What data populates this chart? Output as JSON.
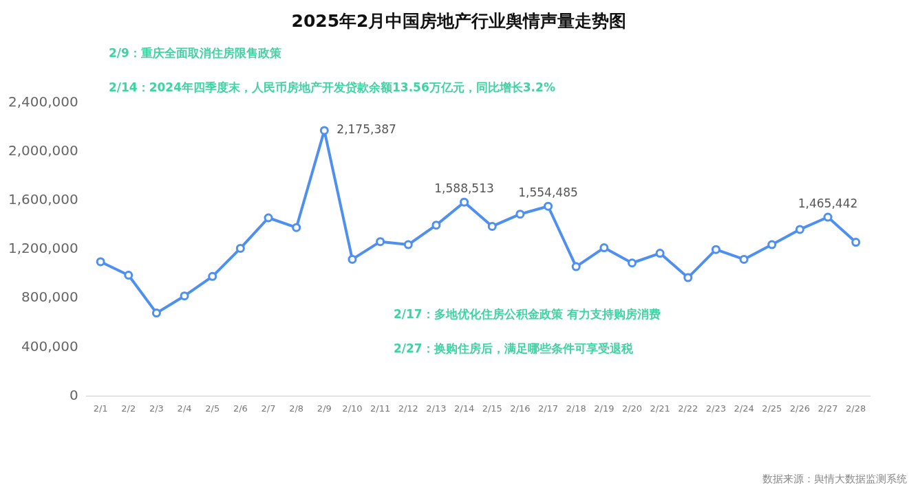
{
  "chart_data": {
    "type": "line",
    "title": "2025年2月中国房地产行业舆情声量走势图",
    "categories": [
      "2/1",
      "2/2",
      "2/3",
      "2/4",
      "2/5",
      "2/6",
      "2/7",
      "2/8",
      "2/9",
      "2/10",
      "2/11",
      "2/12",
      "2/13",
      "2/14",
      "2/15",
      "2/16",
      "2/17",
      "2/18",
      "2/19",
      "2/20",
      "2/21",
      "2/22",
      "2/23",
      "2/24",
      "2/25",
      "2/26",
      "2/27",
      "2/28"
    ],
    "series": [
      {
        "color": "#4e8ff0",
        "values": [
          1100000,
          990000,
          680000,
          820000,
          980000,
          1210000,
          1460000,
          1380000,
          2175387,
          1120000,
          1265000,
          1240000,
          1400000,
          1588513,
          1390000,
          1490000,
          1554485,
          1060000,
          1215000,
          1090000,
          1170000,
          970000,
          1200000,
          1120000,
          1240000,
          1365000,
          1465442,
          1260000
        ],
        "value_labels": [
          null,
          null,
          null,
          null,
          null,
          null,
          null,
          null,
          "2,175,387",
          null,
          null,
          null,
          null,
          "1,588,513",
          null,
          null,
          "1,554,485",
          null,
          null,
          null,
          null,
          null,
          null,
          null,
          null,
          null,
          "1,465,442",
          null
        ]
      }
    ],
    "ylim": [
      0,
      2400000
    ],
    "yticks": [
      0,
      {
        "value": 400000,
        "label": "400,000"
      },
      {
        "value": 800000,
        "label": "800,000"
      },
      {
        "value": 1200000,
        "label": "1,200,000"
      },
      {
        "value": 1600000,
        "label": "1,600,000"
      },
      {
        "value": 2000000,
        "label": "2,000,000"
      },
      {
        "value": 2400000,
        "label": "2,400,000"
      }
    ],
    "grid": false,
    "legend": false,
    "marker": "circle",
    "line_style": "solid",
    "annotations": [
      "2/9：重庆全面取消住房限售政策",
      "2/14：2024年四季度末，人民币房地产开发贷款余额13.56万亿元，同比增长3.2%",
      "2/17：多地优化住房公积金政策 有力支持购房消费",
      "2/27：换购住房后，满足哪些条件可享受退税",
      "数据来源：舆情大数据监测系统"
    ]
  }
}
